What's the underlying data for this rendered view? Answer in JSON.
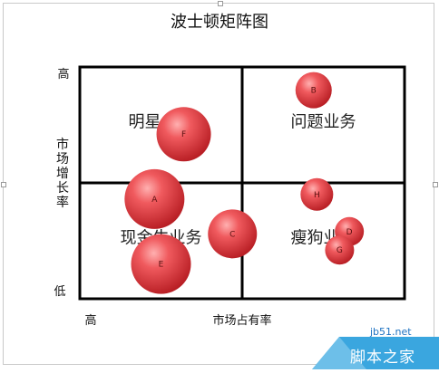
{
  "chart_data": {
    "type": "bubble",
    "title": "波士顿矩阵图",
    "xlabel": "市场占有率",
    "ylabel": "市场增长率",
    "x_tick_labels": [
      "高"
    ],
    "y_tick_labels": [
      "高",
      "低"
    ],
    "quadrant_labels": [
      "明星业务",
      "问题业务",
      "现金牛业务",
      "瘦狗业务"
    ],
    "xlim": [
      0,
      10
    ],
    "ylim": [
      0,
      10
    ],
    "dividers": {
      "x": 5,
      "y": 5
    },
    "bubble_color": "#e8454a",
    "points": [
      {
        "label": "A",
        "x": 2.3,
        "y": 4.3,
        "size": 33
      },
      {
        "label": "B",
        "x": 7.2,
        "y": 9.0,
        "size": 20
      },
      {
        "label": "C",
        "x": 4.7,
        "y": 2.8,
        "size": 27
      },
      {
        "label": "D",
        "x": 8.3,
        "y": 2.9,
        "size": 16
      },
      {
        "label": "E",
        "x": 2.5,
        "y": 1.5,
        "size": 33
      },
      {
        "label": "F",
        "x": 3.2,
        "y": 7.1,
        "size": 30
      },
      {
        "label": "G",
        "x": 8.0,
        "y": 2.1,
        "size": 16
      },
      {
        "label": "H",
        "x": 7.3,
        "y": 4.5,
        "size": 18
      }
    ]
  },
  "watermark": {
    "url": "jb51.net",
    "name": "脚本之家"
  }
}
